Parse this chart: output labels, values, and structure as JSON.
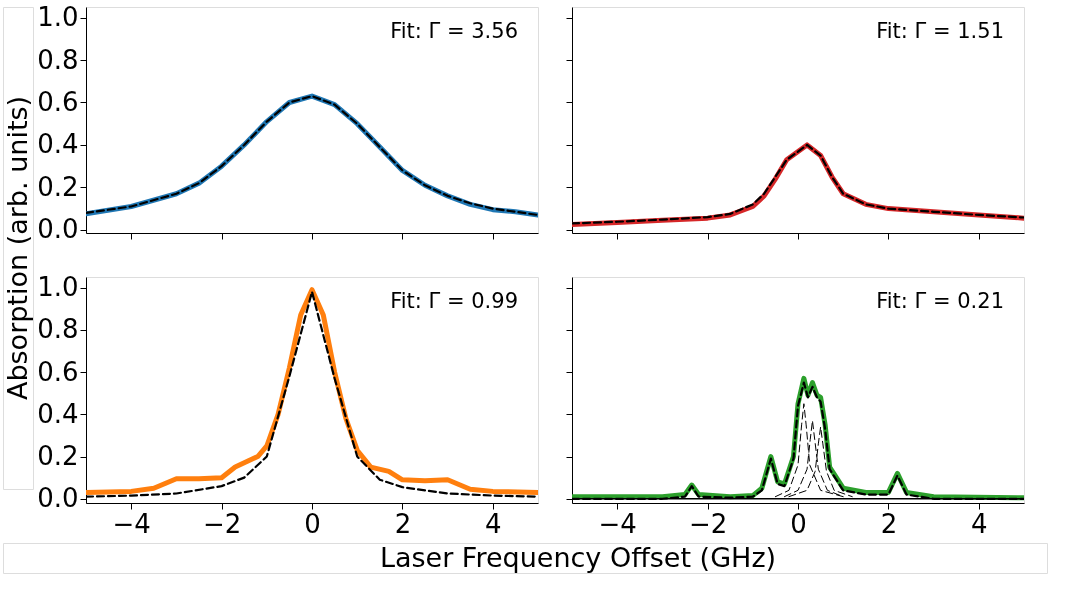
{
  "chart_data": [
    {
      "type": "line",
      "xlim": [
        -5,
        5
      ],
      "ylim": [
        -0.015,
        1.05
      ],
      "tick_labels": "y",
      "xticks": [
        {
          "value": -4,
          "label": null
        },
        {
          "value": -2,
          "label": null
        },
        {
          "value": 0,
          "label": null
        },
        {
          "value": 2,
          "label": null
        },
        {
          "value": 4,
          "label": null
        }
      ],
      "yticks": [
        {
          "value": 0,
          "label": "0.0"
        },
        {
          "value": 0.2,
          "label": "0.2"
        },
        {
          "value": 0.4,
          "label": "0.4"
        },
        {
          "value": 0.6,
          "label": "0.6"
        },
        {
          "value": 0.8,
          "label": "0.8"
        },
        {
          "value": 1,
          "label": "1.0"
        }
      ],
      "annotations": [
        "Fit: Γ = 3.56"
      ],
      "series": [
        {
          "color": "#1f77b4",
          "x": [
            -5,
            -4,
            -3,
            -2.5,
            -2,
            -1.5,
            -1,
            -0.5,
            0,
            0.5,
            1,
            1.5,
            2,
            2.5,
            3,
            3.5,
            4,
            4.5,
            5
          ],
          "values": [
            0.075,
            0.11,
            0.17,
            0.22,
            0.3,
            0.4,
            0.51,
            0.6,
            0.63,
            0.59,
            0.5,
            0.39,
            0.28,
            0.21,
            0.16,
            0.12,
            0.095,
            0.085,
            0.07
          ]
        },
        {
          "color": "#000000",
          "line_style": "dashed",
          "x": [
            -5,
            -4,
            -3,
            -2.5,
            -2,
            -1.5,
            -1,
            -0.5,
            0,
            0.5,
            1,
            1.5,
            2,
            2.5,
            3,
            3.5,
            4,
            4.5,
            5
          ],
          "values": [
            0.08,
            0.11,
            0.17,
            0.22,
            0.3,
            0.4,
            0.51,
            0.6,
            0.63,
            0.59,
            0.5,
            0.39,
            0.28,
            0.21,
            0.16,
            0.125,
            0.1,
            0.085,
            0.07
          ]
        }
      ]
    },
    {
      "type": "line",
      "xlim": [
        -5,
        5
      ],
      "ylim": [
        -0.015,
        1.05
      ],
      "tick_labels": false,
      "xticks": [
        {
          "value": -4,
          "label": null
        },
        {
          "value": -2,
          "label": null
        },
        {
          "value": 0,
          "label": null
        },
        {
          "value": 2,
          "label": null
        },
        {
          "value": 4,
          "label": null
        }
      ],
      "yticks": [
        {
          "value": 0,
          "label": null
        },
        {
          "value": 0.2,
          "label": null
        },
        {
          "value": 0.4,
          "label": null
        },
        {
          "value": 0.6,
          "label": null
        },
        {
          "value": 0.8,
          "label": null
        },
        {
          "value": 1,
          "label": null
        }
      ],
      "annotations": [
        "Fit: Γ = 1.51"
      ],
      "series": [
        {
          "color": "#d62728",
          "x": [
            -5,
            -4,
            -3,
            -2,
            -1.5,
            -1,
            -0.75,
            -0.5,
            -0.25,
            0.2,
            0.5,
            0.75,
            1,
            1.5,
            2,
            3,
            4,
            5
          ],
          "values": [
            0.025,
            0.035,
            0.045,
            0.055,
            0.07,
            0.11,
            0.16,
            0.24,
            0.33,
            0.4,
            0.35,
            0.25,
            0.17,
            0.12,
            0.1,
            0.085,
            0.07,
            0.055
          ]
        },
        {
          "color": "#000000",
          "line_style": "dashed",
          "x": [
            -5,
            -4,
            -3,
            -2,
            -1.5,
            -1,
            -0.75,
            -0.5,
            -0.25,
            0.2,
            0.5,
            0.75,
            1,
            1.5,
            2,
            3,
            4,
            5
          ],
          "values": [
            0.03,
            0.038,
            0.048,
            0.06,
            0.075,
            0.12,
            0.17,
            0.25,
            0.33,
            0.4,
            0.35,
            0.25,
            0.17,
            0.12,
            0.1,
            0.085,
            0.07,
            0.058
          ]
        }
      ]
    },
    {
      "type": "line",
      "xlim": [
        -5,
        5
      ],
      "ylim": [
        -0.02,
        1.05
      ],
      "ylabel": "Absorption (arb. units)",
      "xticks": [
        {
          "value": -4,
          "label": "−4"
        },
        {
          "value": -2,
          "label": "−2"
        },
        {
          "value": 0,
          "label": "0"
        },
        {
          "value": 2,
          "label": "2"
        },
        {
          "value": 4,
          "label": "4"
        }
      ],
      "yticks": [
        {
          "value": 0,
          "label": "0.0"
        },
        {
          "value": 0.2,
          "label": "0.2"
        },
        {
          "value": 0.4,
          "label": "0.4"
        },
        {
          "value": 0.6,
          "label": "0.6"
        },
        {
          "value": 0.8,
          "label": "0.8"
        },
        {
          "value": 1,
          "label": "1.0"
        }
      ],
      "annotations": [
        "Fit: Γ = 0.99"
      ],
      "series": [
        {
          "color": "#ff7f0e",
          "x": [
            -5,
            -4,
            -3.5,
            -3,
            -2.5,
            -2,
            -1.7,
            -1.2,
            -1,
            -0.75,
            -0.5,
            -0.25,
            0,
            0.25,
            0.5,
            0.75,
            1,
            1.3,
            1.7,
            2,
            2.5,
            3,
            3.5,
            4,
            5
          ],
          "values": [
            0.03,
            0.035,
            0.05,
            0.095,
            0.095,
            0.1,
            0.15,
            0.2,
            0.25,
            0.4,
            0.62,
            0.87,
            0.99,
            0.87,
            0.6,
            0.38,
            0.23,
            0.15,
            0.13,
            0.09,
            0.085,
            0.09,
            0.045,
            0.035,
            0.03
          ]
        },
        {
          "color": "#000000",
          "line_style": "dashed",
          "x": [
            -5,
            -4,
            -3,
            -2,
            -1.5,
            -1,
            -0.5,
            0,
            0.5,
            1,
            1.5,
            2,
            3,
            4,
            5
          ],
          "values": [
            0.01,
            0.015,
            0.025,
            0.06,
            0.1,
            0.2,
            0.58,
            0.98,
            0.57,
            0.2,
            0.09,
            0.055,
            0.025,
            0.015,
            0.01
          ]
        }
      ]
    },
    {
      "type": "line",
      "xlim": [
        -5,
        5
      ],
      "ylim": [
        -0.02,
        1.05
      ],
      "tick_labels": "x",
      "xlabel": "Laser Frequency Offset (GHz)",
      "xticks": [
        {
          "value": -4,
          "label": "−4"
        },
        {
          "value": -2,
          "label": "−2"
        },
        {
          "value": 0,
          "label": "0"
        },
        {
          "value": 2,
          "label": "2"
        },
        {
          "value": 4,
          "label": "4"
        }
      ],
      "yticks": [
        {
          "value": 0,
          "label": null
        },
        {
          "value": 0.2,
          "label": null
        },
        {
          "value": 0.4,
          "label": null
        },
        {
          "value": 0.6,
          "label": null
        },
        {
          "value": 0.8,
          "label": null
        },
        {
          "value": 1,
          "label": null
        }
      ],
      "annotations": [
        "Fit: Γ = 0.21"
      ],
      "ref_lines": [
        {
          "axis": "y",
          "value": 0,
          "color": "#000000",
          "line_style": "solid"
        }
      ],
      "series": [
        {
          "color": "#2ca02c",
          "x": [
            -5,
            -3,
            -2.5,
            -2.35,
            -2.2,
            -1.5,
            -1,
            -0.8,
            -0.6,
            -0.45,
            -0.3,
            -0.1,
            0,
            0.13,
            0.22,
            0.32,
            0.42,
            0.5,
            0.6,
            0.7,
            1,
            1.5,
            2,
            2.2,
            2.4,
            3,
            5
          ],
          "values": [
            0.01,
            0.01,
            0.02,
            0.065,
            0.02,
            0.01,
            0.015,
            0.05,
            0.2,
            0.08,
            0.07,
            0.2,
            0.45,
            0.57,
            0.49,
            0.55,
            0.49,
            0.48,
            0.35,
            0.15,
            0.05,
            0.03,
            0.03,
            0.12,
            0.03,
            0.01,
            0.005
          ]
        },
        {
          "color": "#000000",
          "line_style": "dashed",
          "x": [
            -5,
            -3,
            -2.5,
            -2.35,
            -2.2,
            -1.5,
            -1,
            -0.8,
            -0.6,
            -0.45,
            -0.3,
            -0.1,
            0,
            0.13,
            0.22,
            0.32,
            0.42,
            0.5,
            0.6,
            0.7,
            1,
            1.5,
            2,
            2.2,
            2.4,
            3,
            5
          ],
          "values": [
            0,
            0,
            0.01,
            0.06,
            0.01,
            0.005,
            0.01,
            0.04,
            0.19,
            0.07,
            0.06,
            0.19,
            0.44,
            0.55,
            0.48,
            0.53,
            0.48,
            0.46,
            0.33,
            0.14,
            0.04,
            0.02,
            0.02,
            0.11,
            0.02,
            0,
            0
          ]
        },
        {
          "color": "#000000",
          "line_style": "dashed",
          "x": [
            -0.5,
            -0.2,
            0,
            0.08,
            0.13,
            0.18,
            0.26,
            0.5,
            1
          ],
          "values": [
            0.01,
            0.04,
            0.16,
            0.35,
            0.45,
            0.35,
            0.16,
            0.04,
            0.01
          ]
        },
        {
          "color": "#000000",
          "line_style": "dashed",
          "x": [
            -0.3,
            0,
            0.2,
            0.27,
            0.32,
            0.37,
            0.45,
            0.65,
            1
          ],
          "values": [
            0.01,
            0.04,
            0.14,
            0.28,
            0.37,
            0.28,
            0.14,
            0.04,
            0.01
          ]
        },
        {
          "color": "#000000",
          "line_style": "dashed",
          "x": [
            -0.2,
            0.2,
            0.38,
            0.45,
            0.5,
            0.55,
            0.63,
            0.8,
            1.2
          ],
          "values": [
            0.01,
            0.04,
            0.13,
            0.26,
            0.34,
            0.26,
            0.13,
            0.04,
            0.01
          ]
        }
      ]
    }
  ]
}
